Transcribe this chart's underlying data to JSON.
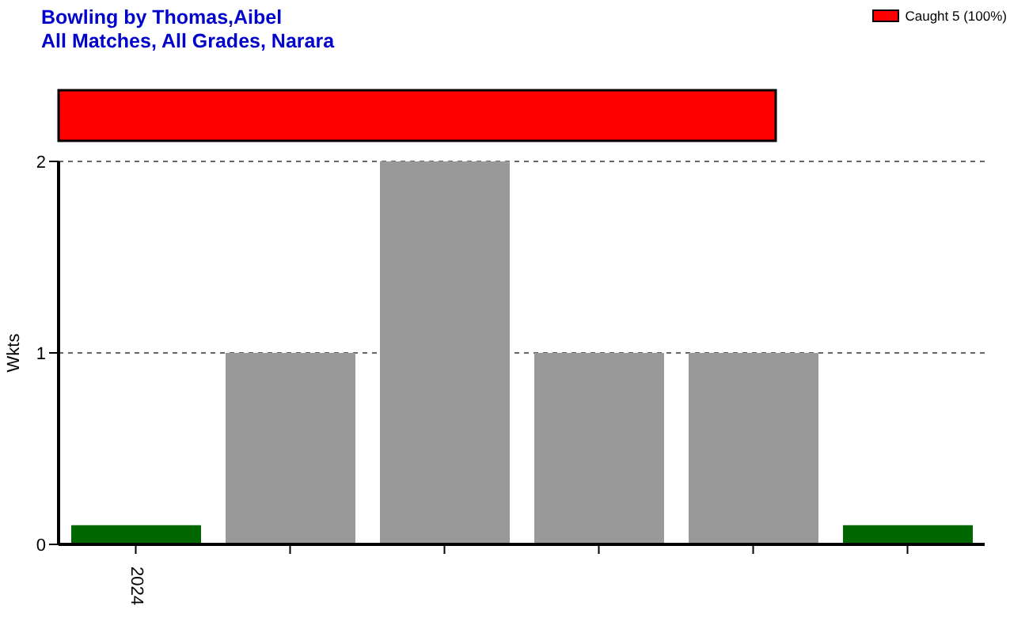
{
  "chart_data": {
    "type": "bar",
    "title": "Bowling by Thomas,Aibel",
    "subtitle": "All Matches, All Grades, Narara",
    "ylabel": "Wkts",
    "annotations": [
      "Caught 5 (100%)"
    ],
    "categories": [
      "2024",
      null,
      null,
      null,
      null,
      null
    ],
    "values": [
      0.1,
      1,
      2,
      1,
      1,
      0.1
    ],
    "colors": [
      "#006600",
      "#999999",
      "#999999",
      "#999999",
      "#999999",
      "#006600"
    ],
    "ylim": [
      0,
      2
    ],
    "yticks": [
      0,
      1,
      2
    ],
    "grid": "y"
  }
}
